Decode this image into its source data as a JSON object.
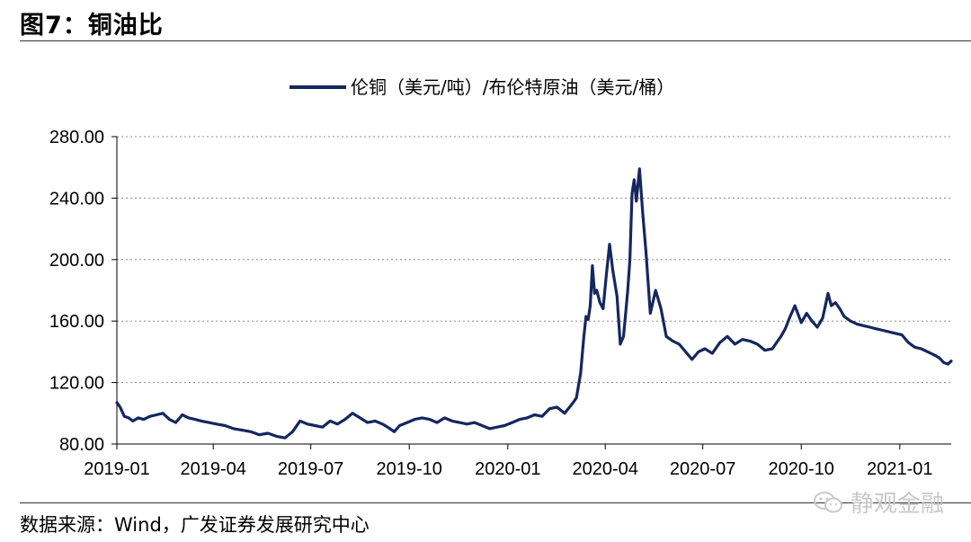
{
  "header": {
    "title": "图7：铜油比"
  },
  "footer": {
    "source": "数据来源：Wind，广发证券发展研究中心",
    "watermark": "静观金融"
  },
  "chart_data": {
    "type": "line",
    "legend": {
      "label": "伦铜（美元/吨）/布伦特原油（美元/桶）",
      "placement": "top-center"
    },
    "series_color": "#14275f",
    "ylim": [
      80,
      280
    ],
    "yticks": [
      "80.00",
      "120.00",
      "160.00",
      "200.00",
      "240.00",
      "280.00"
    ],
    "ytick_values": [
      80,
      120,
      160,
      200,
      240,
      280
    ],
    "xticks": [
      "2019-01",
      "2019-04",
      "2019-07",
      "2019-10",
      "2020-01",
      "2020-04",
      "2020-07",
      "2020-10",
      "2021-01"
    ],
    "xtick_dates": [
      "2019-01-01",
      "2019-04-01",
      "2019-07-01",
      "2019-10-01",
      "2020-01-01",
      "2020-04-01",
      "2020-07-01",
      "2020-10-01",
      "2021-01-01"
    ],
    "xlim": [
      "2019-01-01",
      "2021-02-18"
    ],
    "grid": "horizontal-dashed",
    "series": [
      {
        "x": [
          "2019-01-01",
          "2019-01-04",
          "2019-01-08",
          "2019-01-12",
          "2019-01-16",
          "2019-01-21",
          "2019-01-26",
          "2019-02-01",
          "2019-02-07",
          "2019-02-13",
          "2019-02-19",
          "2019-02-25",
          "2019-03-03",
          "2019-03-09",
          "2019-03-15",
          "2019-03-21",
          "2019-03-28",
          "2019-04-04",
          "2019-04-12",
          "2019-04-20",
          "2019-04-28",
          "2019-05-06",
          "2019-05-14",
          "2019-05-22",
          "2019-05-30",
          "2019-06-07",
          "2019-06-14",
          "2019-06-21",
          "2019-06-28",
          "2019-07-05",
          "2019-07-12",
          "2019-07-19",
          "2019-07-26",
          "2019-08-02",
          "2019-08-09",
          "2019-08-16",
          "2019-08-23",
          "2019-08-30",
          "2019-09-06",
          "2019-09-13",
          "2019-09-17",
          "2019-09-22",
          "2019-09-29",
          "2019-10-06",
          "2019-10-13",
          "2019-10-20",
          "2019-10-27",
          "2019-11-03",
          "2019-11-10",
          "2019-11-17",
          "2019-11-24",
          "2019-12-01",
          "2019-12-08",
          "2019-12-15",
          "2019-12-22",
          "2019-12-29",
          "2020-01-05",
          "2020-01-12",
          "2020-01-19",
          "2020-01-26",
          "2020-02-02",
          "2020-02-09",
          "2020-02-16",
          "2020-02-23",
          "2020-03-01",
          "2020-03-05",
          "2020-03-09",
          "2020-03-12",
          "2020-03-14",
          "2020-03-16",
          "2020-03-18",
          "2020-03-20",
          "2020-03-22",
          "2020-03-24",
          "2020-03-27",
          "2020-03-30",
          "2020-04-02",
          "2020-04-05",
          "2020-04-08",
          "2020-04-12",
          "2020-04-15",
          "2020-04-18",
          "2020-04-20",
          "2020-04-22",
          "2020-04-24",
          "2020-04-26",
          "2020-04-28",
          "2020-04-30",
          "2020-05-03",
          "2020-05-06",
          "2020-05-09",
          "2020-05-13",
          "2020-05-18",
          "2020-05-23",
          "2020-05-28",
          "2020-06-03",
          "2020-06-09",
          "2020-06-15",
          "2020-06-21",
          "2020-06-27",
          "2020-07-03",
          "2020-07-10",
          "2020-07-17",
          "2020-07-24",
          "2020-07-31",
          "2020-08-07",
          "2020-08-14",
          "2020-08-21",
          "2020-08-28",
          "2020-09-04",
          "2020-09-08",
          "2020-09-12",
          "2020-09-16",
          "2020-09-20",
          "2020-09-25",
          "2020-10-01",
          "2020-10-06",
          "2020-10-11",
          "2020-10-16",
          "2020-10-21",
          "2020-10-26",
          "2020-10-29",
          "2020-11-02",
          "2020-11-06",
          "2020-11-10",
          "2020-11-16",
          "2020-11-22",
          "2020-11-28",
          "2020-12-04",
          "2020-12-10",
          "2020-12-16",
          "2020-12-22",
          "2020-12-28",
          "2021-01-03",
          "2021-01-09",
          "2021-01-15",
          "2021-01-21",
          "2021-01-27",
          "2021-02-02",
          "2021-02-07",
          "2021-02-11",
          "2021-02-15",
          "2021-02-18"
        ],
        "values": [
          107,
          104,
          98,
          97,
          95,
          97,
          96,
          98,
          99,
          100,
          96,
          94,
          99,
          97,
          96,
          95,
          94,
          93,
          92,
          90,
          89,
          88,
          86,
          87,
          85,
          84,
          88,
          95,
          93,
          92,
          91,
          95,
          93,
          96,
          100,
          97,
          94,
          95,
          93,
          90,
          88,
          92,
          94,
          96,
          97,
          96,
          94,
          97,
          95,
          94,
          93,
          94,
          92,
          90,
          91,
          92,
          94,
          96,
          97,
          99,
          98,
          103,
          104,
          100,
          106,
          110,
          126,
          150,
          163,
          161,
          170,
          196,
          178,
          180,
          172,
          168,
          190,
          210,
          193,
          176,
          145,
          150,
          165,
          180,
          200,
          243,
          252,
          238,
          259,
          230,
          205,
          165,
          180,
          168,
          150,
          147,
          145,
          140,
          135,
          140,
          142,
          139,
          146,
          150,
          145,
          148,
          147,
          145,
          141,
          142,
          146,
          150,
          155,
          162,
          170,
          159,
          165,
          160,
          156,
          162,
          178,
          170,
          172,
          168,
          163,
          160,
          158,
          157,
          156,
          155,
          154,
          153,
          152,
          151,
          146,
          143,
          142,
          140,
          138,
          136,
          133,
          132,
          134
        ]
      }
    ]
  }
}
